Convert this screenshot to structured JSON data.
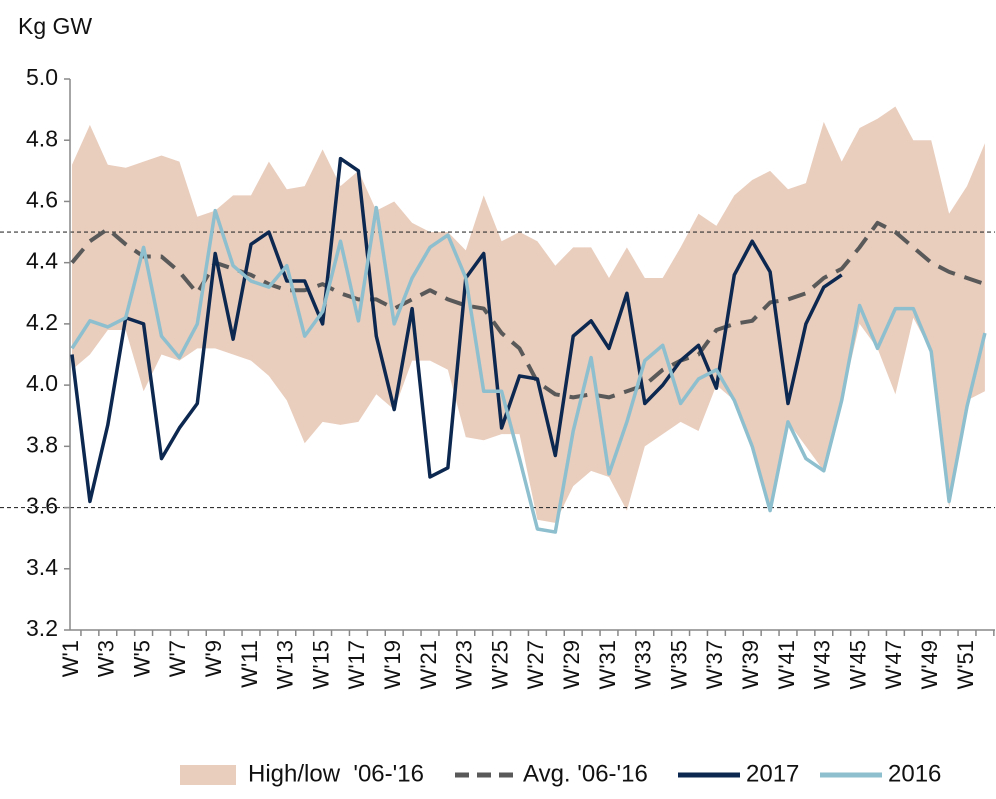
{
  "chart_data": {
    "type": "line",
    "y_label": "Kg GW",
    "categories": [
      "W'1",
      null,
      "W'3",
      null,
      "W'5",
      null,
      "W'7",
      null,
      "W'9",
      null,
      "W'11",
      null,
      "W'13",
      null,
      "W'15",
      null,
      "W'17",
      null,
      "W'19",
      null,
      "W'21",
      null,
      "W'23",
      null,
      "W'25",
      null,
      "W'27",
      null,
      "W'29",
      null,
      "W'31",
      null,
      "W'33",
      null,
      "W'35",
      null,
      "W'37",
      null,
      "W'39",
      null,
      "W'41",
      null,
      "W'43",
      null,
      "W'45",
      null,
      "W'47",
      null,
      "W'49",
      null,
      "W'51",
      null
    ],
    "series": [
      {
        "name": "High/low  '06-'16",
        "kind": "band",
        "color": "#e9cdbd",
        "high": [
          4.72,
          4.85,
          4.72,
          4.71,
          4.73,
          4.75,
          4.73,
          4.55,
          4.57,
          4.62,
          4.62,
          4.73,
          4.64,
          4.65,
          4.77,
          4.65,
          4.7,
          4.57,
          4.6,
          4.53,
          4.5,
          4.5,
          4.44,
          4.62,
          4.47,
          4.5,
          4.47,
          4.39,
          4.45,
          4.45,
          4.35,
          4.45,
          4.35,
          4.35,
          4.45,
          4.56,
          4.52,
          4.62,
          4.67,
          4.7,
          4.64,
          4.66,
          4.86,
          4.73,
          4.84,
          4.87,
          4.91,
          4.8,
          4.8,
          4.56,
          4.65,
          4.79
        ],
        "low": [
          4.05,
          4.1,
          4.18,
          4.18,
          3.98,
          4.1,
          4.08,
          4.12,
          4.12,
          4.1,
          4.08,
          4.03,
          3.95,
          3.81,
          3.88,
          3.87,
          3.88,
          3.97,
          3.92,
          4.08,
          4.08,
          4.05,
          3.83,
          3.82,
          3.84,
          3.84,
          3.56,
          3.55,
          3.67,
          3.72,
          3.7,
          3.59,
          3.8,
          3.84,
          3.88,
          3.85,
          4.0,
          3.95,
          3.8,
          3.6,
          3.88,
          3.8,
          3.72,
          3.95,
          4.2,
          4.12,
          3.97,
          4.22,
          4.11,
          3.6,
          3.95,
          3.98
        ]
      },
      {
        "name": "Avg. '06-'16",
        "kind": "dashed",
        "color": "#595959",
        "values": [
          4.4,
          4.47,
          4.51,
          4.46,
          4.42,
          4.42,
          4.37,
          4.3,
          4.4,
          4.38,
          4.36,
          4.33,
          4.31,
          4.31,
          4.33,
          4.3,
          4.28,
          4.28,
          4.25,
          4.28,
          4.31,
          4.28,
          4.26,
          4.25,
          4.17,
          4.12,
          4.01,
          3.97,
          3.96,
          3.97,
          3.96,
          3.98,
          4.0,
          4.05,
          4.08,
          4.1,
          4.18,
          4.2,
          4.21,
          4.27,
          4.28,
          4.3,
          4.35,
          4.38,
          4.45,
          4.53,
          4.5,
          4.45,
          4.4,
          4.37,
          4.35,
          4.33
        ]
      },
      {
        "name": "2017",
        "kind": "line",
        "color": "#0d2850",
        "values": [
          4.1,
          3.62,
          3.87,
          4.22,
          4.2,
          3.76,
          3.86,
          3.94,
          4.43,
          4.15,
          4.46,
          4.5,
          4.34,
          4.34,
          4.2,
          4.74,
          4.7,
          4.16,
          3.92,
          4.25,
          3.7,
          3.73,
          4.35,
          4.43,
          3.86,
          4.03,
          4.02,
          3.77,
          4.16,
          4.21,
          4.12,
          4.3,
          3.94,
          4.0,
          4.08,
          4.13,
          3.99,
          4.36,
          4.47,
          4.37,
          3.94,
          4.2,
          4.32,
          4.36,
          null,
          null,
          null,
          null,
          null,
          null,
          null,
          null
        ]
      },
      {
        "name": "2016",
        "kind": "line",
        "color": "#8dbfcf",
        "values": [
          4.12,
          4.21,
          4.19,
          4.22,
          4.45,
          4.16,
          4.09,
          4.2,
          4.57,
          4.39,
          4.34,
          4.32,
          4.39,
          4.16,
          4.24,
          4.47,
          4.21,
          4.58,
          4.2,
          4.35,
          4.45,
          4.49,
          4.35,
          3.98,
          3.98,
          3.76,
          3.53,
          3.52,
          3.85,
          4.09,
          3.71,
          3.88,
          4.08,
          4.13,
          3.94,
          4.02,
          4.05,
          3.95,
          3.8,
          3.59,
          3.88,
          3.76,
          3.72,
          3.95,
          4.26,
          4.12,
          4.25,
          4.25,
          4.11,
          3.62,
          3.93,
          4.17
        ]
      }
    ],
    "reference_lines": [
      4.5,
      3.6
    ],
    "ylim": [
      3.2,
      5.0
    ],
    "yticks": [
      {
        "value": 3.2,
        "label": "3.2"
      },
      3.4,
      3.6,
      3.8,
      {
        "value": 4,
        "label": "4.0"
      },
      4.2,
      4.4,
      4.6,
      4.8,
      {
        "value": 5,
        "label": "5.0"
      }
    ],
    "grid": false,
    "legend": "bottom"
  }
}
